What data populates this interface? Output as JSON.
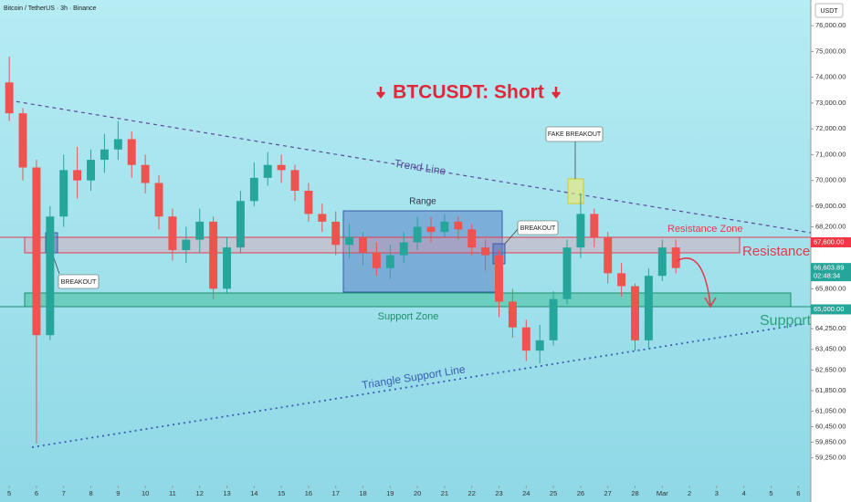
{
  "chart_data": {
    "type": "candlestick",
    "header": "Bitcoin / TetherUS · 3h · Binance",
    "currency": "USDT",
    "title": "BTCUSDT: Short",
    "x": [
      0,
      0.5,
      1,
      1.5,
      2,
      2.5,
      3,
      3.5,
      4,
      4.5,
      5,
      5.5,
      6,
      6.5,
      7,
      7.5,
      8,
      8.5,
      9,
      9.5,
      10,
      10.5,
      11,
      11.5,
      12,
      12.5,
      13,
      13.5,
      14,
      14.5,
      15,
      15.5,
      16,
      16.5,
      17,
      17.5,
      18,
      18.5,
      19,
      19.5,
      20,
      20.5,
      21,
      21.5,
      22,
      22.5,
      23,
      23.5,
      24,
      24.5
    ],
    "open": [
      73800,
      72600,
      70500,
      64000,
      68600,
      70400,
      70000,
      70800,
      71200,
      71600,
      70600,
      69900,
      68600,
      67300,
      67700,
      68400,
      65800,
      67400,
      69200,
      70100,
      70600,
      70400,
      69600,
      68700,
      68400,
      67500,
      67800,
      67200,
      66600,
      67100,
      67600,
      68200,
      68000,
      68400,
      68100,
      67400,
      67100,
      65300,
      64300,
      63400,
      63800,
      65400,
      67400,
      68700,
      67800,
      66400,
      65900,
      63800,
      66300,
      67400
    ],
    "high": [
      74800,
      72800,
      70800,
      69000,
      71000,
      71300,
      71200,
      71800,
      72300,
      71900,
      71000,
      70200,
      68900,
      68200,
      68900,
      68600,
      67800,
      69600,
      70700,
      71100,
      71000,
      70600,
      69900,
      69100,
      68800,
      68300,
      68000,
      67600,
      67500,
      68000,
      68600,
      68600,
      68700,
      68600,
      68300,
      67700,
      67300,
      65800,
      64600,
      64400,
      65700,
      67700,
      69500,
      68900,
      68000,
      66800,
      66000,
      66600,
      67700,
      67700
    ],
    "low": [
      72300,
      70000,
      59800,
      63800,
      68200,
      69300,
      69600,
      70300,
      70800,
      70100,
      69500,
      68100,
      66900,
      66800,
      67200,
      65400,
      65600,
      67200,
      69000,
      69800,
      69900,
      69200,
      68400,
      68000,
      67100,
      67000,
      66700,
      66300,
      66200,
      66800,
      67300,
      67600,
      67800,
      67700,
      67100,
      66500,
      64700,
      63900,
      63000,
      62900,
      63600,
      65200,
      67000,
      67400,
      66000,
      65500,
      63400,
      63500,
      66100,
      66400
    ],
    "close": [
      72600,
      70500,
      64000,
      68600,
      70400,
      70000,
      70800,
      71200,
      71600,
      70600,
      69900,
      68600,
      67300,
      67700,
      68400,
      65800,
      67400,
      69200,
      70100,
      70600,
      70400,
      69600,
      68700,
      68400,
      67500,
      67800,
      67200,
      66600,
      67100,
      67600,
      68200,
      68000,
      68400,
      68100,
      67400,
      67100,
      65300,
      64300,
      63400,
      63800,
      65400,
      67400,
      68700,
      67800,
      66400,
      65900,
      63800,
      66300,
      67400,
      66603.89
    ],
    "up_color": "#26a69a",
    "down_color": "#ef5350",
    "xlim": [
      -0.34,
      29.46
    ],
    "ylim": [
      59000,
      76500
    ],
    "xticks": [
      {
        "value": 0,
        "label": "5"
      },
      {
        "value": 1,
        "label": "6"
      },
      {
        "value": 2,
        "label": "7"
      },
      {
        "value": 3,
        "label": "8"
      },
      {
        "value": 4,
        "label": "9"
      },
      {
        "value": 5,
        "label": "10"
      },
      {
        "value": 6,
        "label": "11"
      },
      {
        "value": 7,
        "label": "12"
      },
      {
        "value": 8,
        "label": "13"
      },
      {
        "value": 9,
        "label": "14"
      },
      {
        "value": 10,
        "label": "15"
      },
      {
        "value": 11,
        "label": "16"
      },
      {
        "value": 12,
        "label": "17"
      },
      {
        "value": 13,
        "label": "18"
      },
      {
        "value": 14,
        "label": "19"
      },
      {
        "value": 15,
        "label": "20"
      },
      {
        "value": 16,
        "label": "21"
      },
      {
        "value": 17,
        "label": "22"
      },
      {
        "value": 18,
        "label": "23"
      },
      {
        "value": 19,
        "label": "24"
      },
      {
        "value": 20,
        "label": "25"
      },
      {
        "value": 21,
        "label": "26"
      },
      {
        "value": 22,
        "label": "27"
      },
      {
        "value": 23,
        "label": "28"
      },
      {
        "value": 24,
        "label": "Mar"
      },
      {
        "value": 25,
        "label": "2"
      },
      {
        "value": 26,
        "label": "3"
      },
      {
        "value": 27,
        "label": "4"
      },
      {
        "value": 28,
        "label": "5"
      },
      {
        "value": 29,
        "label": "6"
      }
    ],
    "yticks": [
      {
        "value": 76000,
        "label": "76,000.00"
      },
      {
        "value": 75000,
        "label": "75,000.00"
      },
      {
        "value": 74000,
        "label": "74,000.00"
      },
      {
        "value": 73000,
        "label": "73,000.00"
      },
      {
        "value": 72000,
        "label": "72,000.00"
      },
      {
        "value": 71000,
        "label": "71,000.00"
      },
      {
        "value": 70000,
        "label": "70,000.00"
      },
      {
        "value": 69000,
        "label": "69,000.00"
      },
      {
        "value": 68200,
        "label": "68,200.00"
      },
      {
        "value": 65800,
        "label": "65,800.00"
      },
      {
        "value": 64250,
        "label": "64,250.00"
      },
      {
        "value": 63450,
        "label": "63,450.00"
      },
      {
        "value": 62650,
        "label": "62,650.00"
      },
      {
        "value": 61850,
        "label": "61,850.00"
      },
      {
        "value": 61050,
        "label": "61,050.00"
      },
      {
        "value": 60450,
        "label": "60,450.00"
      },
      {
        "value": 59850,
        "label": "59,850.00"
      },
      {
        "value": 59250,
        "label": "59,250.00"
      }
    ],
    "price_tags": [
      {
        "value": 67600,
        "label": "67,600.00",
        "color": "#f23645"
      },
      {
        "value": 66603.89,
        "label": "66,603.89",
        "color": "#26a69a",
        "countdown": "02:48:34"
      },
      {
        "value": 65000,
        "label": "65,000.00",
        "color": "#26a69a"
      }
    ],
    "annotations": {
      "trend_line": "Trend Line",
      "range": "Range",
      "breakout_left": "BREAKOUT",
      "breakout_right": "BREAKOUT",
      "fake_breakout": "FAKE BREAKOUT",
      "resistance_zone": "Resistance Zone",
      "resistance": "Resistance",
      "support_zone": "Support Zone",
      "support": "Support",
      "triangle_support_line": "Triangle Support Line"
    }
  }
}
